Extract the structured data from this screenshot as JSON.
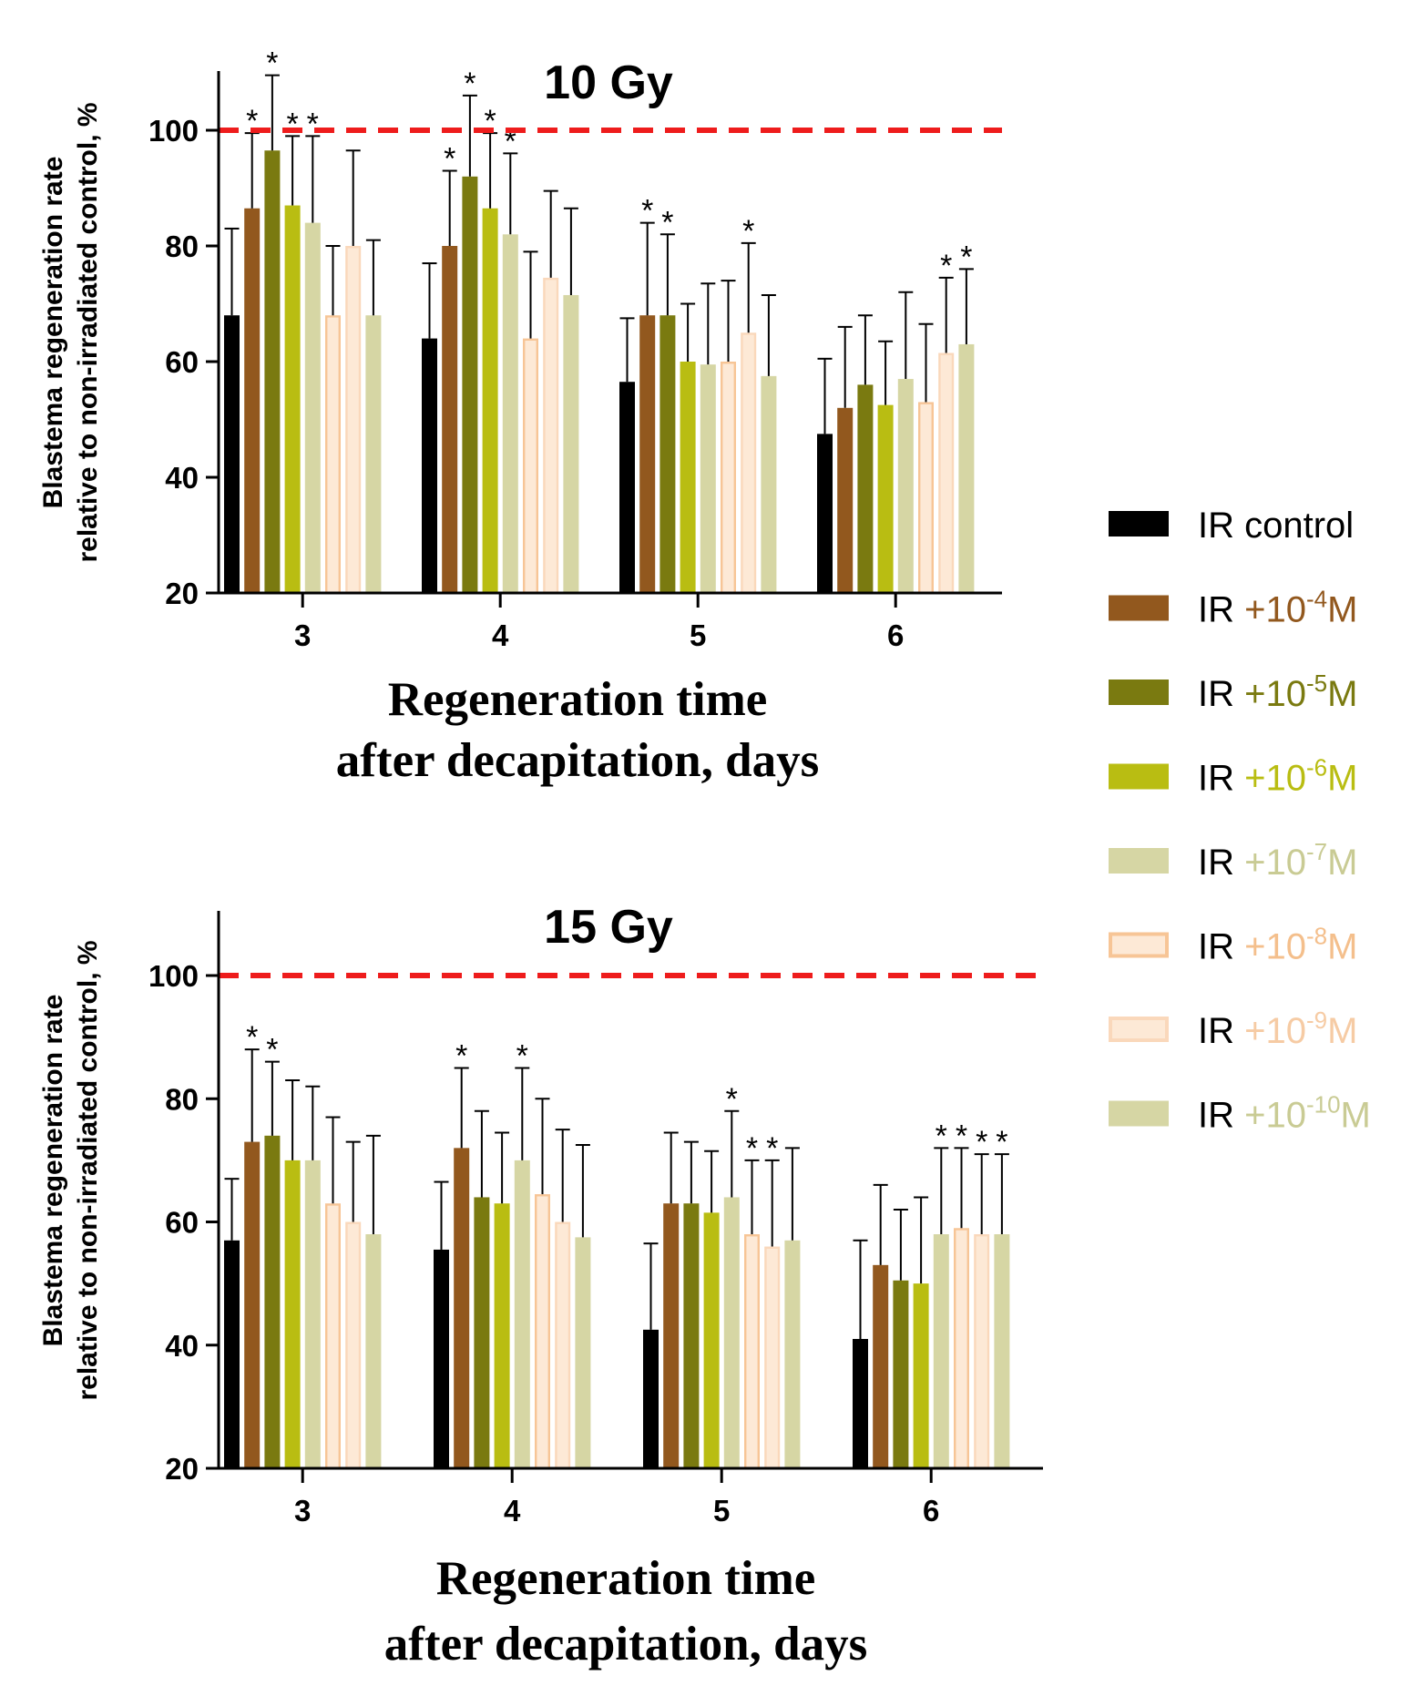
{
  "legend": [
    {
      "prefix": "IR",
      "main": " control",
      "sup": "",
      "suffix": "",
      "color": "#000000",
      "text_color": "#000000",
      "style": "solid"
    },
    {
      "prefix": "IR",
      "main": " +10",
      "sup": "-4",
      "suffix": "M",
      "color": "#92581e",
      "text_color": "#92581e",
      "style": "solid"
    },
    {
      "prefix": "IR",
      "main": " +10",
      "sup": "-5",
      "suffix": "M",
      "color": "#7a7a10",
      "text_color": "#7a7a10",
      "style": "solid"
    },
    {
      "prefix": "IR",
      "main": " +10",
      "sup": "-6",
      "suffix": "M",
      "color": "#b9bd12",
      "text_color": "#b9bd12",
      "style": "solid"
    },
    {
      "prefix": "IR",
      "main": " +10",
      "sup": "-7",
      "suffix": "M",
      "color": "#d6d6a4",
      "text_color": "#c9cb94",
      "style": "solid"
    },
    {
      "prefix": "IR",
      "main": " +10",
      "sup": "-8",
      "suffix": "M",
      "color": "#f7c596",
      "text_color": "#f4bf8c",
      "style": "outlined"
    },
    {
      "prefix": "IR",
      "main": " +10",
      "sup": "-9",
      "suffix": "M",
      "color": "#fad8bb",
      "text_color": "#f6cba4",
      "style": "outlined"
    },
    {
      "prefix": "IR",
      "main": " +10",
      "sup": "-10",
      "suffix": "M",
      "color": "#d6d6a4",
      "text_color": "#c9cb94",
      "style": "solid"
    }
  ],
  "chart_data": [
    {
      "type": "bar",
      "title": "10 Gy",
      "categories": [
        "3",
        "4",
        "5",
        "6"
      ],
      "xlabel": [
        "Regeneration time",
        "after decapitation, days"
      ],
      "ylabel": [
        "Blastema regeneration rate",
        "relative to non-irradiated control, %"
      ],
      "ylim": [
        20,
        110
      ],
      "yticks": [
        "20",
        "40",
        "60",
        "80",
        "100"
      ],
      "reference_line": {
        "value": 100,
        "color": "#ee1c1c",
        "style": "dashed"
      },
      "significance_marker": "*",
      "series": [
        {
          "name": "IR control",
          "values": [
            68,
            64,
            56.5,
            47.5
          ],
          "errors": [
            15,
            13,
            11,
            13
          ],
          "significant": [
            false,
            false,
            false,
            false
          ]
        },
        {
          "name": "IR +10-4M",
          "values": [
            86.5,
            80,
            68,
            52
          ],
          "errors": [
            13,
            13,
            16,
            14
          ],
          "significant": [
            true,
            true,
            true,
            false
          ]
        },
        {
          "name": "IR +10-5M",
          "values": [
            96.5,
            92,
            68,
            56
          ],
          "errors": [
            13,
            14,
            14,
            12
          ],
          "significant": [
            true,
            true,
            true,
            false
          ]
        },
        {
          "name": "IR +10-6M",
          "values": [
            87,
            86.5,
            60,
            52.5
          ],
          "errors": [
            12,
            13,
            10,
            11
          ],
          "significant": [
            true,
            true,
            false,
            false
          ]
        },
        {
          "name": "IR +10-7M",
          "values": [
            84,
            82,
            59.5,
            57
          ],
          "errors": [
            15,
            14,
            14,
            15
          ],
          "significant": [
            true,
            true,
            false,
            false
          ]
        },
        {
          "name": "IR +10-8M",
          "values": [
            68,
            64,
            60,
            53
          ],
          "errors": [
            12,
            15,
            14,
            13.5
          ],
          "significant": [
            false,
            false,
            false,
            false
          ]
        },
        {
          "name": "IR +10-9M",
          "values": [
            80,
            74.5,
            65,
            61.5
          ],
          "errors": [
            16.5,
            15,
            15.5,
            13
          ],
          "significant": [
            false,
            false,
            true,
            true
          ]
        },
        {
          "name": "IR +10-10M",
          "values": [
            68,
            71.5,
            57.5,
            63
          ],
          "errors": [
            13,
            15,
            14,
            13
          ],
          "significant": [
            false,
            false,
            false,
            true
          ]
        }
      ]
    },
    {
      "type": "bar",
      "title": "15 Gy",
      "categories": [
        "3",
        "4",
        "5",
        "6"
      ],
      "xlabel": [
        "Regeneration time",
        "after decapitation, days"
      ],
      "ylabel": [
        "Blastema regeneration rate",
        "relative to non-irradiated control, %"
      ],
      "ylim": [
        20,
        110
      ],
      "yticks": [
        "20",
        "40",
        "60",
        "80",
        "100"
      ],
      "reference_line": {
        "value": 100,
        "color": "#ee1c1c",
        "style": "dashed"
      },
      "significance_marker": "*",
      "series": [
        {
          "name": "IR control",
          "values": [
            57,
            55.5,
            42.5,
            41
          ],
          "errors": [
            10,
            11,
            14,
            16
          ],
          "significant": [
            false,
            false,
            false,
            false
          ]
        },
        {
          "name": "IR +10-4M",
          "values": [
            73,
            72,
            63,
            53
          ],
          "errors": [
            15,
            13,
            11.5,
            13
          ],
          "significant": [
            true,
            true,
            false,
            false
          ]
        },
        {
          "name": "IR +10-5M",
          "values": [
            74,
            64,
            63,
            50.5
          ],
          "errors": [
            12,
            14,
            10,
            11.5
          ],
          "significant": [
            true,
            false,
            false,
            false
          ]
        },
        {
          "name": "IR +10-6M",
          "values": [
            70,
            63,
            61.5,
            50
          ],
          "errors": [
            13,
            11.5,
            10,
            14
          ],
          "significant": [
            false,
            false,
            false,
            false
          ]
        },
        {
          "name": "IR +10-7M",
          "values": [
            70,
            70,
            64,
            58
          ],
          "errors": [
            12,
            15,
            14,
            14
          ],
          "significant": [
            false,
            true,
            true,
            true
          ]
        },
        {
          "name": "IR +10-8M",
          "values": [
            63,
            64.5,
            58,
            59
          ],
          "errors": [
            14,
            15.5,
            12,
            13
          ],
          "significant": [
            false,
            false,
            true,
            true
          ]
        },
        {
          "name": "IR +10-9M",
          "values": [
            60,
            60,
            56,
            58
          ],
          "errors": [
            13,
            15,
            14,
            13
          ],
          "significant": [
            false,
            false,
            true,
            true
          ]
        },
        {
          "name": "IR +10-10M",
          "values": [
            58,
            57.5,
            57,
            58
          ],
          "errors": [
            16,
            15,
            15,
            13
          ],
          "significant": [
            false,
            false,
            false,
            true
          ]
        }
      ]
    }
  ]
}
